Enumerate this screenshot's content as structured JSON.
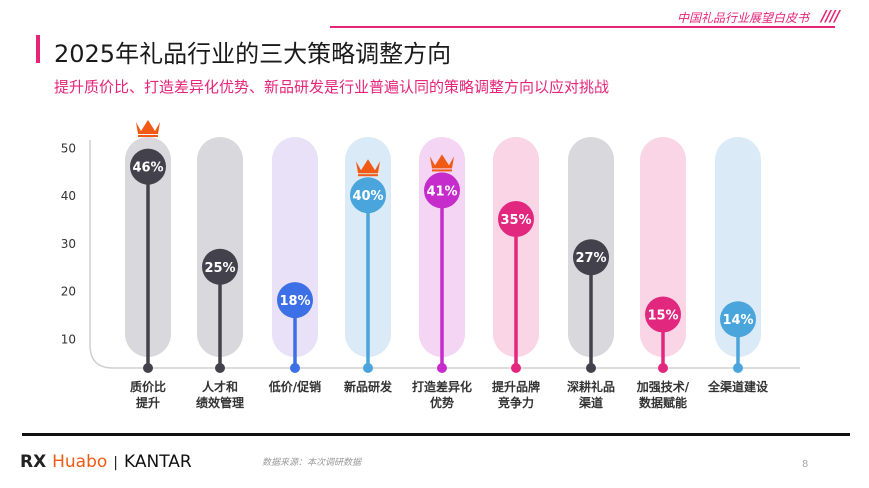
{
  "header": {
    "report": "中国礼品行业展望白皮书",
    "slashes": "////"
  },
  "title": "2025年礼品行业的三大策略调整方向",
  "subtitle": "提升质价比、打造差异化优势、新品研发是行业普遍认同的策略调整方向以应对挑战",
  "chart_data": {
    "type": "lollipop",
    "ylim": [
      0,
      50
    ],
    "yticks": [
      10,
      20,
      30,
      40,
      50
    ],
    "categories": [
      [
        "质价比",
        "提升"
      ],
      [
        "人才和",
        "绩效管理"
      ],
      [
        "低价/促销"
      ],
      [
        "新品研发"
      ],
      [
        "打造差异化",
        "优势"
      ],
      [
        "提升品牌",
        "竞争力"
      ],
      [
        "深耕礼品",
        "渠道"
      ],
      [
        "加强技术/",
        "数据赋能"
      ],
      [
        "全渠道建设"
      ]
    ],
    "values": [
      46,
      25,
      18,
      40,
      41,
      35,
      27,
      15,
      14
    ],
    "labels": [
      "46%",
      "25%",
      "18%",
      "40%",
      "41%",
      "35%",
      "27%",
      "15%",
      "14%"
    ],
    "colors": [
      "#43424c",
      "#43424c",
      "#3d6fe6",
      "#4aa5dc",
      "#c52ccb",
      "#e2287e",
      "#43424c",
      "#e2287e",
      "#4aa5dc"
    ],
    "column_colors": [
      "#d8d8dd",
      "#d8d8dd",
      "#e8e1f7",
      "#dbeaf7",
      "#f4d5f3",
      "#f9d5e6",
      "#d8d8dd",
      "#f9d5e6",
      "#dbeaf7"
    ],
    "crowned": [
      true,
      false,
      false,
      true,
      true,
      false,
      false,
      false,
      false
    ],
    "crown_color": "#f05a14"
  },
  "footer": {
    "logo_rx": "RX",
    "logo_huabo": "Huabo",
    "logo_sep": "|",
    "logo_kantar": "KANTAR",
    "source": "数据来源：本次调研数据",
    "page": "8"
  }
}
